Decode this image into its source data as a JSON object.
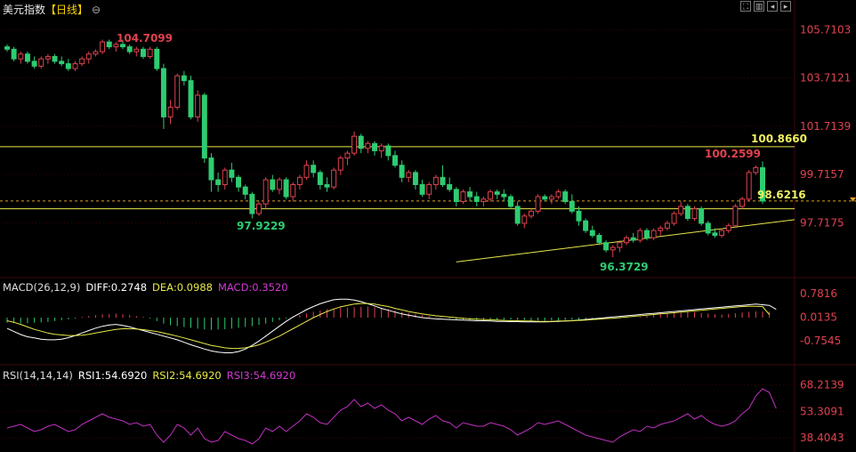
{
  "header": {
    "title": "美元指数",
    "period_tag": "【日线】",
    "zoom_icon": "magnifier-icon",
    "tools": [
      "fullscreen-icon",
      "layout-icon",
      "back-icon",
      "forward-icon"
    ]
  },
  "colors": {
    "up": "#e0424f",
    "down": "#2ecc71",
    "level_line": "#e8e84a",
    "grid": "#3a0000",
    "axis_text_main": "#e0424f",
    "diff": "#ffffff",
    "dea": "#e8e84a",
    "macd": "#d03ad0",
    "rsi": "#c030c0"
  },
  "main_panel": {
    "y_ticks": [
      "105.7103",
      "103.7121",
      "101.7139",
      "99.7157",
      "97.7175"
    ],
    "annotations": {
      "high": "104.7099",
      "low1": "97.9229",
      "low2": "96.3729",
      "recent_high": "100.2599",
      "resistance": "100.8660",
      "current": "98.6216"
    }
  },
  "macd_panel": {
    "label": "MACD(26,12,9)",
    "diff_text": "DIFF:0.2748",
    "dea_text": "DEA:0.0988",
    "macd_text": "MACD:0.3520",
    "y_ticks": [
      "0.7816",
      "0.0135",
      "-0.7545"
    ]
  },
  "rsi_panel": {
    "label": "RSI(14,14,14)",
    "rsi1_text": "RSI1:54.6920",
    "rsi2_text": "RSI2:54.6920",
    "rsi3_text": "RSI3:54.6920",
    "y_ticks": [
      "68.2139",
      "53.3091",
      "38.4043"
    ]
  },
  "chart_data": {
    "type": "candlestick",
    "y_range": [
      95.6,
      106.2
    ],
    "levels": [
      100.866,
      98.6216,
      98.3
    ],
    "trendline": [
      [
        96.1,
        97.85
      ]
    ],
    "candles": [
      [
        105.0,
        105.1,
        104.8,
        104.9
      ],
      [
        104.9,
        105.0,
        104.4,
        104.5
      ],
      [
        104.5,
        104.8,
        104.3,
        104.7
      ],
      [
        104.7,
        104.8,
        104.3,
        104.4
      ],
      [
        104.4,
        104.6,
        104.1,
        104.2
      ],
      [
        104.2,
        104.6,
        104.1,
        104.5
      ],
      [
        104.5,
        104.7,
        104.3,
        104.6
      ],
      [
        104.6,
        104.7,
        104.3,
        104.4
      ],
      [
        104.4,
        104.6,
        104.2,
        104.3
      ],
      [
        104.3,
        104.5,
        104.0,
        104.1
      ],
      [
        104.1,
        104.4,
        104.0,
        104.3
      ],
      [
        104.3,
        104.6,
        104.2,
        104.5
      ],
      [
        104.5,
        104.8,
        104.3,
        104.7
      ],
      [
        104.7,
        104.9,
        104.6,
        104.8
      ],
      [
        104.8,
        105.3,
        104.7,
        105.2
      ],
      [
        105.2,
        105.3,
        104.9,
        105.0
      ],
      [
        105.0,
        105.2,
        104.8,
        105.1
      ],
      [
        105.1,
        105.3,
        104.9,
        105.0
      ],
      [
        105.0,
        105.1,
        104.7,
        104.8
      ],
      [
        104.8,
        105.0,
        104.6,
        104.9
      ],
      [
        104.9,
        105.0,
        104.5,
        104.6
      ],
      [
        104.6,
        105.0,
        104.5,
        104.9
      ],
      [
        104.9,
        105.0,
        104.0,
        104.1
      ],
      [
        104.1,
        104.3,
        101.6,
        102.1
      ],
      [
        102.1,
        102.8,
        101.8,
        102.5
      ],
      [
        102.5,
        103.9,
        102.4,
        103.8
      ],
      [
        103.8,
        104.0,
        103.4,
        103.6
      ],
      [
        103.6,
        103.8,
        102.0,
        102.1
      ],
      [
        102.1,
        103.2,
        101.9,
        103.0
      ],
      [
        103.0,
        103.1,
        100.2,
        100.4
      ],
      [
        100.4,
        100.6,
        99.0,
        99.5
      ],
      [
        99.5,
        99.8,
        99.0,
        99.3
      ],
      [
        99.3,
        100.0,
        99.1,
        99.9
      ],
      [
        99.9,
        100.2,
        99.4,
        99.6
      ],
      [
        99.6,
        99.7,
        99.0,
        99.2
      ],
      [
        99.2,
        99.3,
        98.7,
        98.9
      ],
      [
        98.9,
        99.0,
        97.9,
        98.1
      ],
      [
        98.1,
        98.6,
        98.0,
        98.5
      ],
      [
        98.5,
        99.6,
        98.3,
        99.5
      ],
      [
        99.5,
        99.7,
        99.0,
        99.1
      ],
      [
        99.1,
        99.6,
        98.9,
        99.5
      ],
      [
        99.5,
        99.6,
        98.7,
        98.8
      ],
      [
        98.8,
        99.4,
        98.6,
        99.3
      ],
      [
        99.3,
        99.7,
        99.1,
        99.6
      ],
      [
        99.6,
        100.3,
        99.5,
        100.1
      ],
      [
        100.1,
        100.3,
        99.6,
        99.8
      ],
      [
        99.8,
        99.9,
        99.1,
        99.3
      ],
      [
        99.3,
        99.6,
        99.0,
        99.2
      ],
      [
        99.2,
        100.0,
        99.1,
        99.9
      ],
      [
        99.9,
        100.5,
        99.7,
        100.4
      ],
      [
        100.4,
        100.7,
        100.1,
        100.6
      ],
      [
        100.6,
        101.5,
        100.5,
        101.3
      ],
      [
        101.3,
        101.4,
        100.6,
        100.8
      ],
      [
        100.8,
        101.1,
        100.6,
        101.0
      ],
      [
        101.0,
        101.1,
        100.5,
        100.7
      ],
      [
        100.7,
        101.0,
        100.4,
        100.9
      ],
      [
        100.9,
        101.0,
        100.3,
        100.5
      ],
      [
        100.5,
        100.7,
        100.0,
        100.1
      ],
      [
        100.1,
        100.3,
        99.4,
        99.6
      ],
      [
        99.6,
        99.9,
        99.4,
        99.8
      ],
      [
        99.8,
        99.9,
        99.1,
        99.3
      ],
      [
        99.3,
        99.5,
        98.8,
        98.9
      ],
      [
        98.9,
        99.4,
        98.7,
        99.3
      ],
      [
        99.3,
        99.7,
        99.1,
        99.6
      ],
      [
        99.6,
        100.1,
        99.2,
        99.3
      ],
      [
        99.3,
        99.6,
        99.0,
        99.1
      ],
      [
        99.1,
        99.2,
        98.4,
        98.6
      ],
      [
        98.6,
        99.1,
        98.5,
        99.0
      ],
      [
        99.0,
        99.2,
        98.6,
        98.8
      ],
      [
        98.8,
        99.0,
        98.4,
        98.6
      ],
      [
        98.6,
        98.8,
        98.4,
        98.7
      ],
      [
        98.7,
        99.1,
        98.6,
        99.0
      ],
      [
        99.0,
        99.1,
        98.7,
        98.9
      ],
      [
        98.9,
        99.1,
        98.6,
        98.8
      ],
      [
        98.8,
        98.9,
        98.3,
        98.4
      ],
      [
        98.4,
        98.6,
        97.6,
        97.7
      ],
      [
        97.7,
        98.1,
        97.5,
        98.0
      ],
      [
        98.0,
        98.3,
        97.9,
        98.2
      ],
      [
        98.2,
        98.9,
        98.1,
        98.8
      ],
      [
        98.8,
        98.9,
        98.6,
        98.7
      ],
      [
        98.7,
        98.9,
        98.5,
        98.8
      ],
      [
        98.8,
        99.1,
        98.7,
        99.0
      ],
      [
        99.0,
        99.1,
        98.5,
        98.6
      ],
      [
        98.6,
        98.9,
        98.1,
        98.2
      ],
      [
        98.2,
        98.4,
        97.6,
        97.8
      ],
      [
        97.8,
        97.9,
        97.3,
        97.4
      ],
      [
        97.4,
        97.6,
        97.1,
        97.2
      ],
      [
        97.2,
        97.3,
        96.8,
        96.9
      ],
      [
        96.9,
        97.0,
        96.5,
        96.6
      ],
      [
        96.6,
        96.8,
        96.3,
        96.7
      ],
      [
        96.7,
        97.0,
        96.5,
        96.9
      ],
      [
        96.9,
        97.2,
        96.8,
        97.1
      ],
      [
        97.1,
        97.3,
        96.9,
        97.0
      ],
      [
        97.0,
        97.5,
        96.9,
        97.4
      ],
      [
        97.4,
        97.5,
        97.0,
        97.1
      ],
      [
        97.1,
        97.5,
        97.0,
        97.4
      ],
      [
        97.4,
        97.6,
        97.2,
        97.5
      ],
      [
        97.5,
        97.8,
        97.4,
        97.7
      ],
      [
        97.7,
        98.2,
        97.6,
        98.1
      ],
      [
        98.1,
        98.6,
        98.0,
        98.4
      ],
      [
        98.4,
        98.5,
        97.8,
        97.9
      ],
      [
        97.9,
        98.4,
        97.8,
        98.3
      ],
      [
        98.3,
        98.4,
        97.6,
        97.7
      ],
      [
        97.7,
        97.8,
        97.2,
        97.3
      ],
      [
        97.3,
        97.5,
        97.1,
        97.2
      ],
      [
        97.2,
        97.5,
        97.1,
        97.4
      ],
      [
        97.4,
        97.7,
        97.3,
        97.6
      ],
      [
        97.6,
        98.5,
        97.5,
        98.4
      ],
      [
        98.4,
        98.8,
        98.3,
        98.7
      ],
      [
        98.7,
        99.9,
        98.6,
        99.8
      ],
      [
        99.8,
        100.1,
        99.7,
        100.0
      ],
      [
        100.0,
        100.26,
        98.5,
        98.62
      ]
    ],
    "macd_hist": [
      -0.3,
      -0.32,
      -0.34,
      -0.33,
      -0.3,
      -0.28,
      -0.25,
      -0.2,
      -0.15,
      -0.1,
      -0.05,
      0.05,
      0.1,
      0.15,
      0.2,
      0.22,
      0.24,
      0.2,
      0.15,
      0.1,
      0.05,
      -0.05,
      -0.2,
      -0.35,
      -0.45,
      -0.5,
      -0.55,
      -0.6,
      -0.65,
      -0.7,
      -0.72,
      -0.7,
      -0.68,
      -0.65,
      -0.6,
      -0.55,
      -0.5,
      -0.42,
      -0.35,
      -0.25,
      -0.15,
      -0.05,
      0.05,
      0.15,
      0.25,
      0.35,
      0.42,
      0.5,
      0.55,
      0.58,
      0.6,
      0.62,
      0.64,
      0.65,
      0.62,
      0.58,
      0.5,
      0.42,
      0.35,
      0.28,
      0.22,
      0.15,
      0.1,
      0.05,
      0.0,
      -0.05,
      -0.1,
      -0.12,
      -0.14,
      -0.15,
      -0.15,
      -0.14,
      -0.13,
      -0.12,
      -0.12,
      -0.14,
      -0.16,
      -0.17,
      -0.18,
      -0.18,
      -0.17,
      -0.16,
      -0.15,
      -0.14,
      -0.13,
      -0.12,
      -0.1,
      -0.08,
      -0.06,
      -0.05,
      -0.04,
      -0.03,
      0.0,
      0.05,
      0.1,
      0.15,
      0.2,
      0.25,
      0.3,
      0.33,
      0.35,
      0.32,
      0.28,
      0.24,
      0.2,
      0.18,
      0.22,
      0.26,
      0.3,
      0.35,
      0.38,
      0.36,
      0.35
    ],
    "macd_diff": [
      -0.35,
      -0.45,
      -0.55,
      -0.62,
      -0.66,
      -0.7,
      -0.72,
      -0.72,
      -0.7,
      -0.65,
      -0.58,
      -0.5,
      -0.42,
      -0.34,
      -0.28,
      -0.24,
      -0.22,
      -0.25,
      -0.3,
      -0.36,
      -0.42,
      -0.48,
      -0.54,
      -0.6,
      -0.66,
      -0.72,
      -0.8,
      -0.88,
      -0.95,
      -1.02,
      -1.08,
      -1.12,
      -1.14,
      -1.14,
      -1.1,
      -1.02,
      -0.9,
      -0.76,
      -0.6,
      -0.44,
      -0.28,
      -0.12,
      0.02,
      0.14,
      0.26,
      0.36,
      0.45,
      0.52,
      0.58,
      0.6,
      0.6,
      0.57,
      0.52,
      0.45,
      0.38,
      0.3,
      0.24,
      0.18,
      0.12,
      0.08,
      0.04,
      0.0,
      -0.02,
      -0.04,
      -0.05,
      -0.06,
      -0.07,
      -0.08,
      -0.09,
      -0.1,
      -0.1,
      -0.11,
      -0.12,
      -0.12,
      -0.13,
      -0.13,
      -0.14,
      -0.14,
      -0.14,
      -0.14,
      -0.13,
      -0.12,
      -0.11,
      -0.1,
      -0.08,
      -0.06,
      -0.04,
      -0.02,
      0.0,
      0.02,
      0.04,
      0.06,
      0.08,
      0.1,
      0.12,
      0.14,
      0.16,
      0.18,
      0.2,
      0.22,
      0.24,
      0.26,
      0.28,
      0.3,
      0.32,
      0.34,
      0.36,
      0.38,
      0.4,
      0.42,
      0.44,
      0.42,
      0.4,
      0.27
    ],
    "macd_dea": [
      -0.1,
      -0.15,
      -0.22,
      -0.3,
      -0.38,
      -0.44,
      -0.5,
      -0.54,
      -0.56,
      -0.58,
      -0.58,
      -0.57,
      -0.54,
      -0.5,
      -0.46,
      -0.42,
      -0.38,
      -0.36,
      -0.36,
      -0.37,
      -0.39,
      -0.42,
      -0.45,
      -0.5,
      -0.55,
      -0.6,
      -0.66,
      -0.72,
      -0.78,
      -0.84,
      -0.9,
      -0.94,
      -0.98,
      -1.0,
      -1.0,
      -0.98,
      -0.94,
      -0.88,
      -0.8,
      -0.7,
      -0.6,
      -0.48,
      -0.36,
      -0.24,
      -0.12,
      0.0,
      0.1,
      0.2,
      0.28,
      0.35,
      0.4,
      0.44,
      0.46,
      0.46,
      0.44,
      0.4,
      0.36,
      0.3,
      0.25,
      0.2,
      0.16,
      0.12,
      0.09,
      0.06,
      0.04,
      0.02,
      0.0,
      -0.02,
      -0.04,
      -0.05,
      -0.06,
      -0.07,
      -0.08,
      -0.09,
      -0.1,
      -0.1,
      -0.11,
      -0.11,
      -0.12,
      -0.12,
      -0.12,
      -0.11,
      -0.11,
      -0.1,
      -0.09,
      -0.08,
      -0.06,
      -0.05,
      -0.03,
      -0.02,
      0.0,
      0.02,
      0.04,
      0.06,
      0.08,
      0.1,
      0.12,
      0.14,
      0.16,
      0.18,
      0.2,
      0.22,
      0.24,
      0.26,
      0.28,
      0.3,
      0.32,
      0.34,
      0.36,
      0.37,
      0.37,
      0.36,
      0.1
    ],
    "rsi": [
      44,
      45,
      46,
      44,
      42,
      43,
      45,
      46,
      44,
      42,
      43,
      46,
      48,
      50,
      52,
      50,
      49,
      48,
      46,
      47,
      45,
      46,
      40,
      36,
      40,
      46,
      44,
      40,
      44,
      38,
      36,
      37,
      42,
      40,
      38,
      37,
      35,
      38,
      44,
      42,
      45,
      42,
      45,
      48,
      52,
      50,
      47,
      46,
      50,
      54,
      56,
      60,
      56,
      58,
      55,
      57,
      54,
      52,
      48,
      50,
      48,
      46,
      49,
      51,
      48,
      47,
      44,
      47,
      46,
      45,
      45,
      47,
      46,
      45,
      43,
      40,
      42,
      44,
      47,
      46,
      47,
      48,
      46,
      44,
      42,
      40,
      39,
      38,
      37,
      36,
      39,
      41,
      43,
      42,
      45,
      44,
      46,
      47,
      48,
      50,
      52,
      49,
      51,
      48,
      46,
      45,
      46,
      48,
      52,
      55,
      62,
      66,
      64,
      55
    ]
  }
}
